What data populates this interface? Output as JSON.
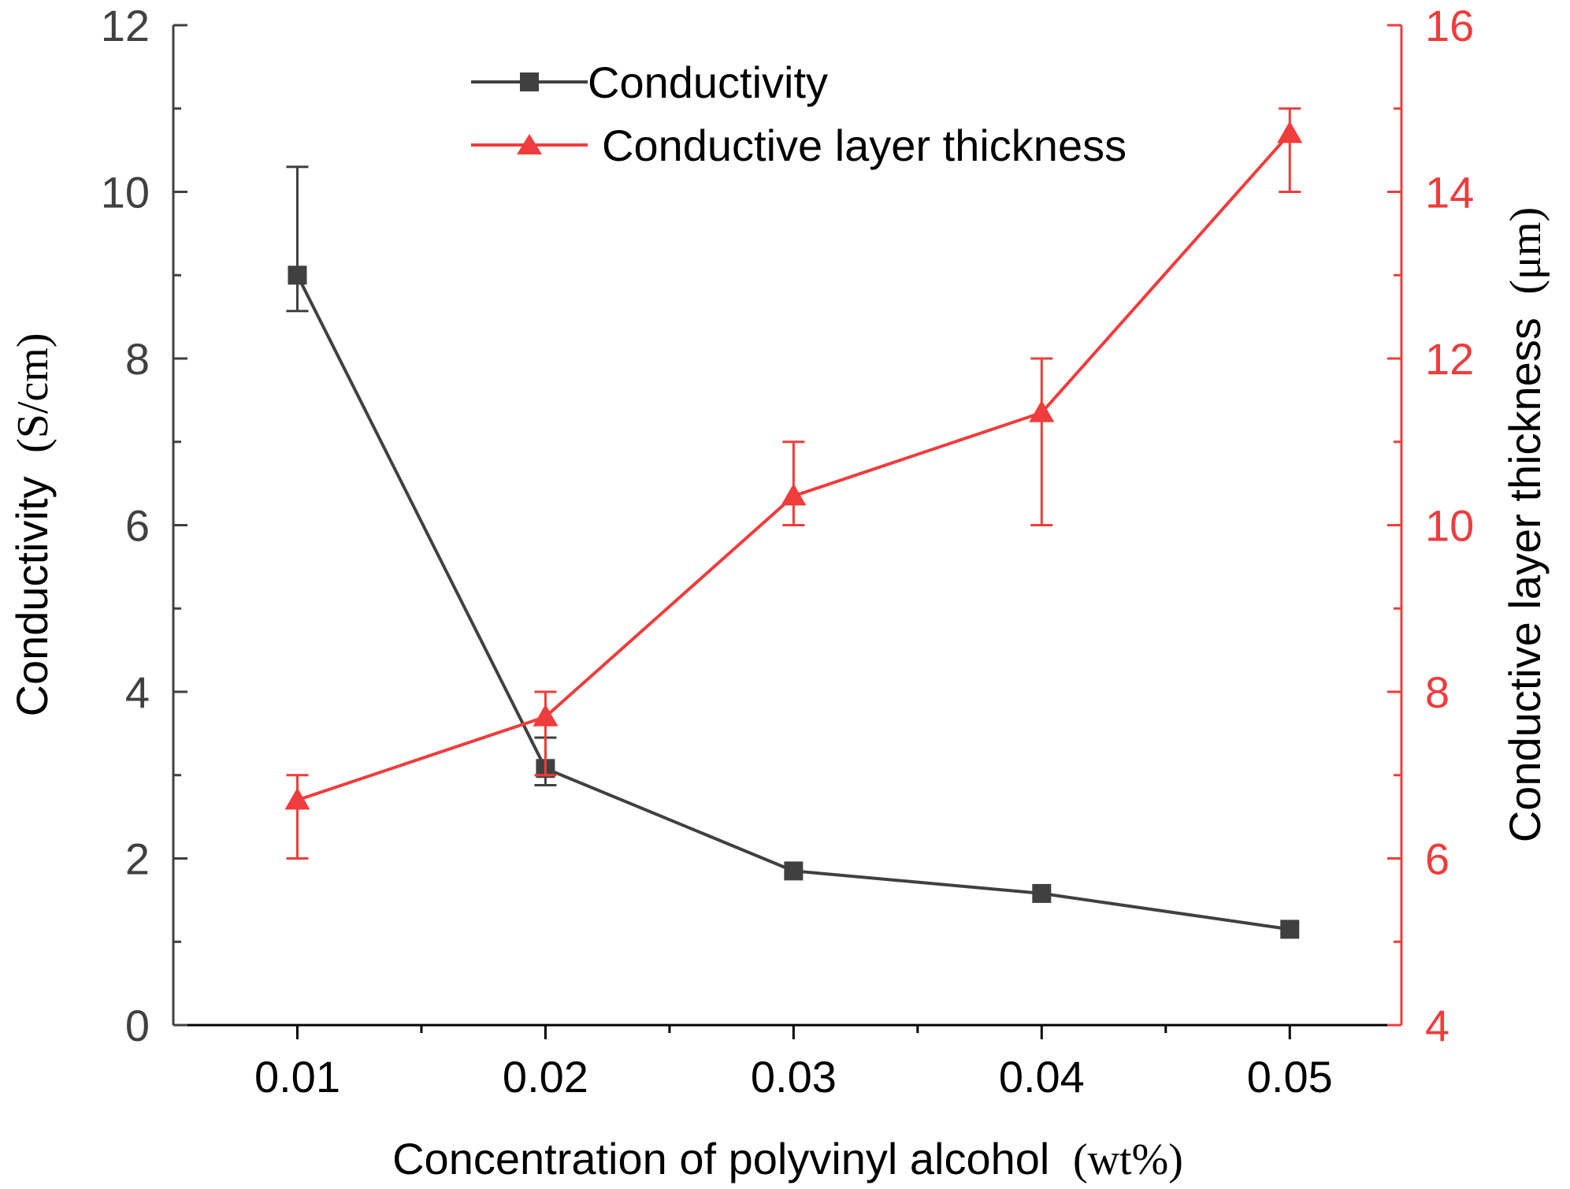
{
  "chart_data": {
    "type": "line",
    "title": "",
    "xlabel": "Concentration of polyvinyl alcohol",
    "xlabel_unit": "(wt%)",
    "ylabel_left": "Conductivity",
    "ylabel_left_unit": "(S/cm)",
    "ylabel_right": "Conductive layer thickness",
    "ylabel_right_unit": "(μm)",
    "categories": [
      "0.01",
      "0.02",
      "0.03",
      "0.04",
      "0.05"
    ],
    "x": [
      0.01,
      0.02,
      0.03,
      0.04,
      0.05
    ],
    "xlim": [
      0.005,
      0.0545
    ],
    "ylim_left": [
      0,
      12
    ],
    "ylim_right": [
      4,
      16
    ],
    "yticks_left": [
      "0",
      "2",
      "4",
      "6",
      "8",
      "10",
      "12"
    ],
    "yticks_right": [
      "4",
      "6",
      "8",
      "10",
      "12",
      "14",
      "16"
    ],
    "grid": false,
    "legend_position": "top-center",
    "series": [
      {
        "name": "Conductivity",
        "axis": "left",
        "marker": "square",
        "color": "#404040",
        "values": [
          9.0,
          3.08,
          1.85,
          1.58,
          1.15
        ],
        "err_low": [
          8.57,
          2.88,
          null,
          null,
          null
        ],
        "err_high": [
          10.3,
          3.45,
          null,
          null,
          null
        ]
      },
      {
        "name": "Conductive layer thickness",
        "axis": "right",
        "marker": "triangle",
        "color": "#f03c3c",
        "values": [
          6.7,
          7.7,
          10.35,
          11.35,
          14.7
        ],
        "err_low": [
          6.0,
          7.0,
          10.0,
          10.0,
          14.0
        ],
        "err_high": [
          7.0,
          8.0,
          11.0,
          12.0,
          15.0
        ]
      }
    ]
  }
}
